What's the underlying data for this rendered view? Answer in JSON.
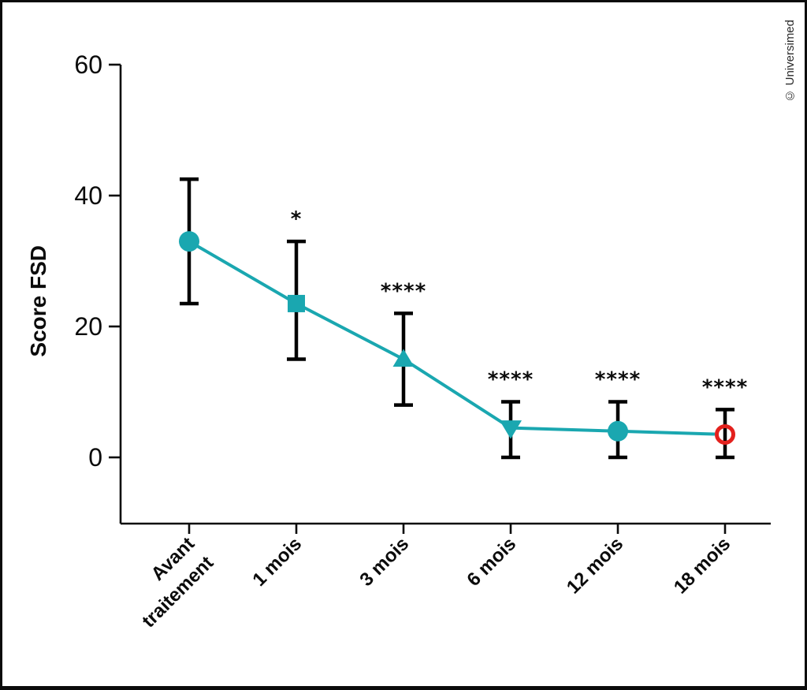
{
  "figure": {
    "ylabel": "Score FSD",
    "copyright": "© Universimed"
  },
  "chart_data": {
    "type": "line",
    "title": "",
    "xlabel": "",
    "ylabel": "Score FSD",
    "ylim": [
      -10,
      60
    ],
    "yticks": [
      0,
      20,
      40,
      60
    ],
    "grid": false,
    "legend": "none",
    "categories": [
      "Avant traitement",
      "1 mois",
      "3 mois",
      "6 mois",
      "12 mois",
      "18 mois"
    ],
    "category_lines": [
      [
        "Avant",
        "traitement"
      ],
      [
        "1 mois"
      ],
      [
        "3 mois"
      ],
      [
        "6 mois"
      ],
      [
        "12 mois"
      ],
      [
        "18 mois"
      ]
    ],
    "series": [
      {
        "name": "Score FSD",
        "means": [
          33,
          23.5,
          15,
          4.5,
          4,
          3.5
        ],
        "ci_low": [
          23.5,
          15,
          8,
          0,
          0,
          0
        ],
        "ci_high": [
          42.5,
          33,
          22,
          8.5,
          8.5,
          7.3
        ],
        "markers": [
          "circle",
          "square",
          "triangle-up",
          "triangle-down",
          "circle",
          "open-circle"
        ],
        "marker_colors": [
          "#1AA7B0",
          "#1AA7B0",
          "#1AA7B0",
          "#1AA7B0",
          "#1AA7B0",
          "#E3211D"
        ],
        "line_color": "#1AA7B0",
        "error_bar_color": "#000000"
      }
    ],
    "significance": [
      "",
      "*",
      "****",
      "****",
      "****",
      "****"
    ],
    "colors": {
      "series_teal": "#1AA7B0",
      "final_point_red": "#E3211D",
      "axis_black": "#0b0b0b"
    }
  }
}
